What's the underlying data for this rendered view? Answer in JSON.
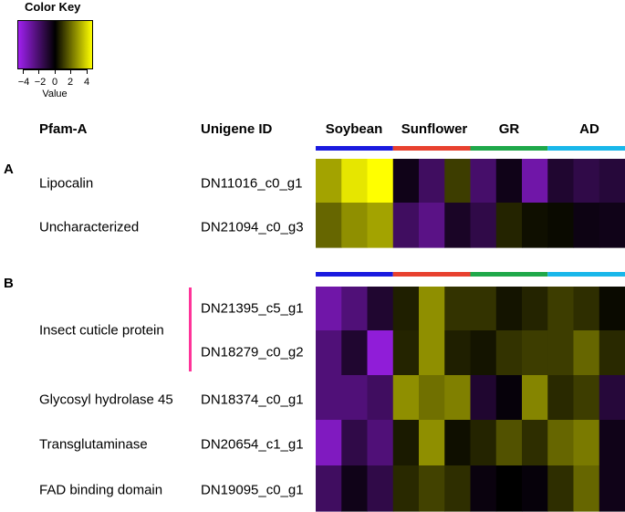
{
  "color_key": {
    "title": "Color Key",
    "ticks": [
      "−4",
      "−2",
      "0",
      "2",
      "4"
    ],
    "value_label": "Value",
    "range": [
      -5,
      5
    ],
    "low_color": "#a020f0",
    "mid_color": "#000000",
    "high_color": "#ffff00"
  },
  "headers": {
    "pfam": "Pfam-A",
    "unigene": "Unigene ID"
  },
  "groups": [
    {
      "name": "Soybean",
      "color": "#1a1adf"
    },
    {
      "name": "Sunflower",
      "color": "#e8412f"
    },
    {
      "name": "GR",
      "color": "#1fa84a"
    },
    {
      "name": "AD",
      "color": "#19b7ea"
    }
  ],
  "sections": {
    "A": {
      "label": "A",
      "rows": [
        {
          "pfam": "Lipocalin",
          "id": "DN11016_c0_g1"
        },
        {
          "pfam": "Uncharacterized",
          "id": "DN21094_c0_g3"
        }
      ]
    },
    "B": {
      "label": "B",
      "insect_label": "Insect cuticle protein",
      "rows": [
        {
          "pfam": "",
          "id": "DN21395_c5_g1"
        },
        {
          "pfam": "",
          "id": "DN18279_c0_g2"
        },
        {
          "pfam": "Glycosyl hydrolase 45",
          "id": "DN18374_c0_g1"
        },
        {
          "pfam": "Transglutaminase",
          "id": "DN20654_c1_g1"
        },
        {
          "pfam": "FAD binding domain",
          "id": "DN19095_c0_g1"
        }
      ]
    }
  },
  "chart_data": {
    "type": "heatmap",
    "columns_per_group": 3,
    "value_range": [
      -5,
      5
    ],
    "panels": [
      {
        "panel": "A",
        "rows": [
          {
            "id": "DN11016_c0_g1",
            "values": [
              3.2,
              4.5,
              5.0,
              -0.5,
              -2.0,
              1.2,
              -2.2,
              -0.5,
              -3.5,
              -1.0,
              -1.5,
              -1.2
            ]
          },
          {
            "id": "DN21094_c0_g3",
            "values": [
              2.0,
              2.8,
              3.2,
              -2.0,
              -2.8,
              -0.8,
              -1.5,
              0.7,
              0.3,
              0.2,
              -0.4,
              -0.5
            ]
          }
        ]
      },
      {
        "panel": "B",
        "rows": [
          {
            "id": "DN21395_c5_g1",
            "values": [
              -3.5,
              -2.5,
              -1.0,
              0.6,
              2.8,
              1.0,
              1.0,
              0.4,
              0.7,
              1.2,
              0.9,
              0.2
            ]
          },
          {
            "id": "DN18279_c0_g2",
            "values": [
              -2.5,
              -1.0,
              -4.5,
              0.7,
              2.8,
              0.6,
              0.4,
              1.0,
              1.2,
              1.2,
              2.0,
              0.8
            ]
          },
          {
            "id": "DN18374_c0_g1",
            "values": [
              -2.5,
              -2.5,
              -2.0,
              2.8,
              2.2,
              2.5,
              -1.0,
              -0.2,
              2.6,
              0.8,
              1.2,
              -1.2
            ]
          },
          {
            "id": "DN20654_c1_g1",
            "values": [
              -4.0,
              -1.5,
              -2.5,
              0.5,
              2.8,
              0.3,
              0.7,
              1.6,
              0.9,
              2.0,
              2.4,
              -0.5
            ]
          },
          {
            "id": "DN19095_c0_g1",
            "values": [
              -2.0,
              -0.5,
              -1.5,
              0.8,
              1.3,
              0.9,
              -0.3,
              0.0,
              -0.2,
              0.9,
              2.0,
              -0.5
            ]
          }
        ]
      }
    ]
  }
}
